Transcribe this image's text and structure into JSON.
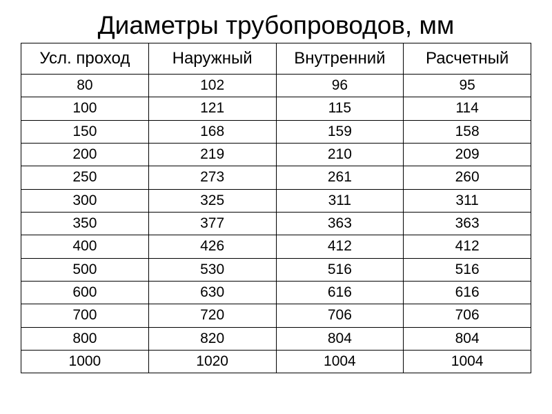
{
  "table": {
    "title": "Диаметры трубопроводов, мм",
    "title_fontsize": 37,
    "header_fontsize": 24,
    "cell_fontsize": 21,
    "background_color": "#ffffff",
    "text_color": "#000000",
    "border_color": "#000000",
    "columns": [
      "Усл. проход",
      "Наружный",
      "Внутренний",
      "Расчетный"
    ],
    "rows": [
      [
        "80",
        "102",
        "96",
        "95"
      ],
      [
        "100",
        "121",
        "115",
        "114"
      ],
      [
        "150",
        "168",
        "159",
        "158"
      ],
      [
        "200",
        "219",
        "210",
        "209"
      ],
      [
        "250",
        "273",
        "261",
        "260"
      ],
      [
        "300",
        "325",
        "311",
        "311"
      ],
      [
        "350",
        "377",
        "363",
        "363"
      ],
      [
        "400",
        "426",
        "412",
        "412"
      ],
      [
        "500",
        "530",
        "516",
        "516"
      ],
      [
        "600",
        "630",
        "616",
        "616"
      ],
      [
        "700",
        "720",
        "706",
        "706"
      ],
      [
        "800",
        "820",
        "804",
        "804"
      ],
      [
        "1000",
        "1020",
        "1004",
        "1004"
      ]
    ]
  }
}
